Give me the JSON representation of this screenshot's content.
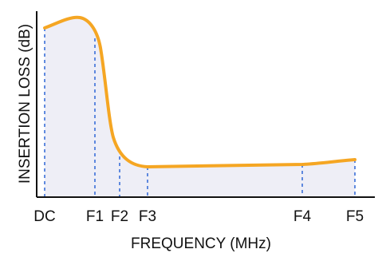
{
  "chart_data": {
    "type": "line",
    "xlabel": "FREQUENCY (MHz)",
    "ylabel": "INSERTION LOSS (dB)",
    "x_ticks": [
      "DC",
      "F1",
      "F2",
      "F3",
      "F4",
      "F5"
    ],
    "series": [
      {
        "values_relative": [
          {
            "x": "DC",
            "y": 0.85
          },
          {
            "x": "peak",
            "y": 0.93
          },
          {
            "x": "F1",
            "y": 0.78
          },
          {
            "x": "F2",
            "y": 0.16
          },
          {
            "x": "F3",
            "y": 0.12
          },
          {
            "x": "F4",
            "y": 0.14
          },
          {
            "x": "F5",
            "y": 0.2
          }
        ]
      }
    ],
    "grid": false,
    "legend": "none",
    "colors": {
      "curve": "#f5a623",
      "fill": "#eeeef6",
      "markers": "#3a6fd8",
      "axis": "#111111"
    }
  }
}
